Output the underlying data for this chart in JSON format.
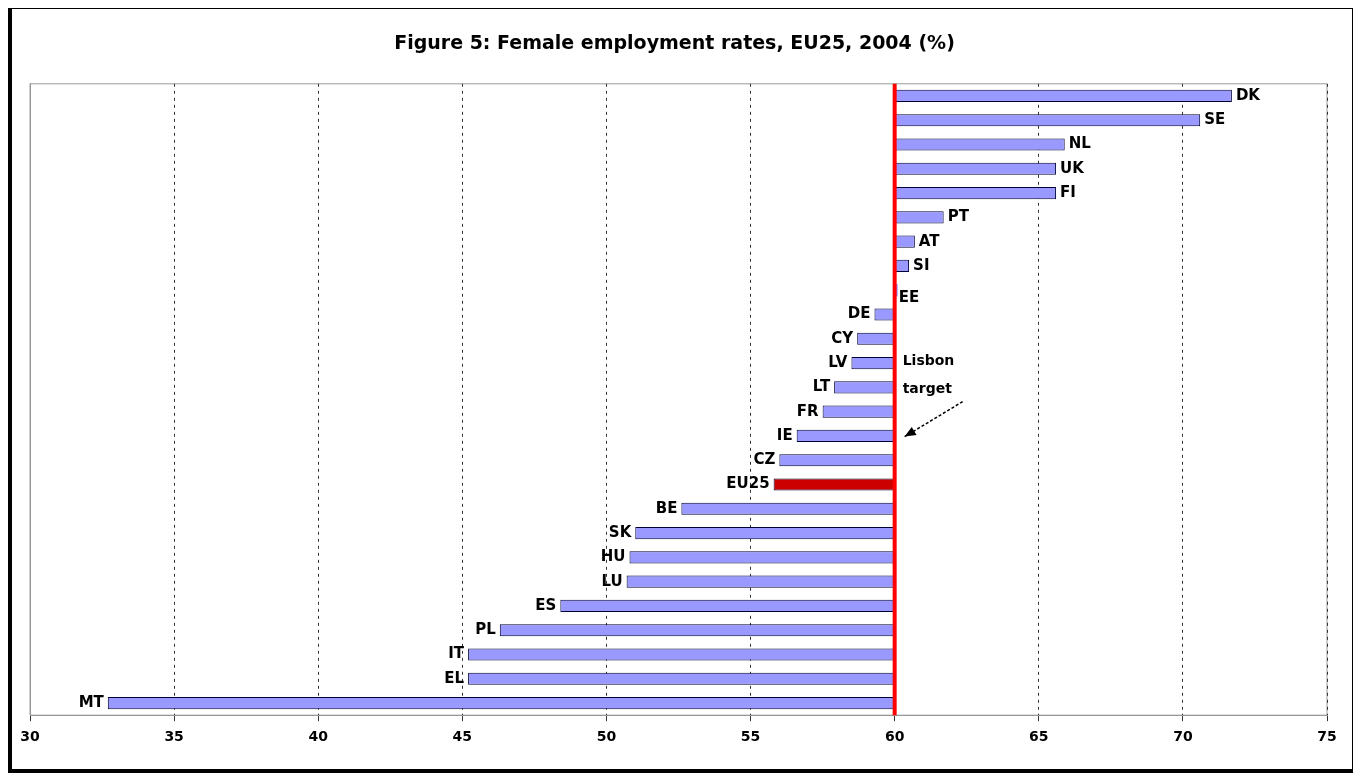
{
  "chart_data": {
    "type": "bar",
    "title": "Figure 5: Female employment rates, EU25, 2004 (%)",
    "orientation": "horizontal",
    "categories": [
      "DK",
      "SE",
      "NL",
      "UK",
      "FI",
      "PT",
      "AT",
      "SI",
      "EE",
      "DE",
      "CY",
      "LV",
      "LT",
      "FR",
      "IE",
      "CZ",
      "EU25",
      "BE",
      "SK",
      "HU",
      "LU",
      "ES",
      "PL",
      "IT",
      "EL",
      "MT"
    ],
    "base": [
      60,
      60,
      60,
      60,
      60,
      60,
      60,
      60,
      60,
      60,
      60,
      60,
      60,
      60,
      60,
      60,
      60,
      60,
      60,
      60,
      60,
      60,
      60,
      60,
      60,
      60
    ],
    "values": [
      11.7,
      10.6,
      5.9,
      5.6,
      5.6,
      1.7,
      0.7,
      0.5,
      0,
      -0.7,
      -1.3,
      -1.5,
      -2.1,
      -2.5,
      -3.4,
      -4.0,
      -4.2,
      -7.4,
      -9.0,
      -9.2,
      -9.3,
      -11.6,
      -13.7,
      -14.8,
      -14.8,
      -27.3
    ],
    "colors": [
      "#9999ff",
      "#9999ff",
      "#9999ff",
      "#9999ff",
      "#9999ff",
      "#9999ff",
      "#9999ff",
      "#9999ff",
      "#9999ff",
      "#9999ff",
      "#9999ff",
      "#9999ff",
      "#9999ff",
      "#9999ff",
      "#9999ff",
      "#9999ff",
      "#cc0000",
      "#9999ff",
      "#9999ff",
      "#9999ff",
      "#9999ff",
      "#9999ff",
      "#9999ff",
      "#9999ff",
      "#9999ff",
      "#9999ff"
    ],
    "xlim": [
      30,
      75
    ],
    "xticks": [
      30,
      35,
      40,
      45,
      50,
      55,
      60,
      65,
      70,
      75
    ],
    "ref_lines": [
      {
        "axis": "x",
        "value": 60,
        "label": "Lisbon target",
        "color": "#ff0000"
      }
    ],
    "grid": "x",
    "tick_labels": "x"
  }
}
